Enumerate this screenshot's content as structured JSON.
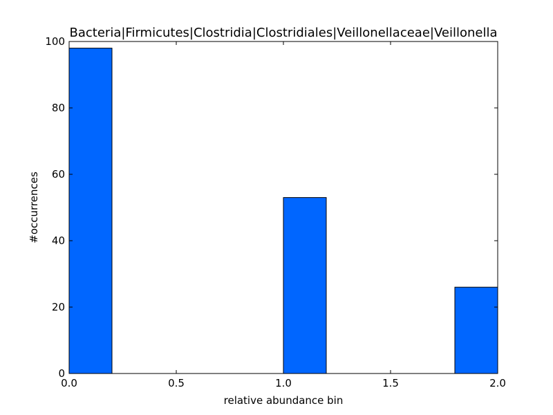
{
  "chart_data": {
    "type": "bar",
    "title": "Bacteria|Firmicutes|Clostridia|Clostridiales|Veillonellaceae|Veillonella",
    "xlabel": "relative abundance bin",
    "ylabel": "#occurrences",
    "xlim": [
      0,
      2
    ],
    "ylim": [
      0,
      100
    ],
    "xticks": [
      "0.0",
      "0.5",
      "1.0",
      "1.5",
      "2.0"
    ],
    "yticks": [
      "0",
      "20",
      "40",
      "60",
      "80",
      "100"
    ],
    "bins": [
      {
        "x0": 0.0,
        "x1": 0.2,
        "value": 98
      },
      {
        "x0": 0.2,
        "x1": 0.4,
        "value": 0
      },
      {
        "x0": 0.4,
        "x1": 0.6,
        "value": 0
      },
      {
        "x0": 0.6,
        "x1": 0.8,
        "value": 0
      },
      {
        "x0": 0.8,
        "x1": 1.0,
        "value": 0
      },
      {
        "x0": 1.0,
        "x1": 1.2,
        "value": 53
      },
      {
        "x0": 1.2,
        "x1": 1.4,
        "value": 0
      },
      {
        "x0": 1.4,
        "x1": 1.6,
        "value": 0
      },
      {
        "x0": 1.6,
        "x1": 1.8,
        "value": 0
      },
      {
        "x0": 1.8,
        "x1": 2.0,
        "value": 26
      }
    ],
    "bar_color": "#0066ff",
    "edge_color": "#000000",
    "grid": false
  }
}
